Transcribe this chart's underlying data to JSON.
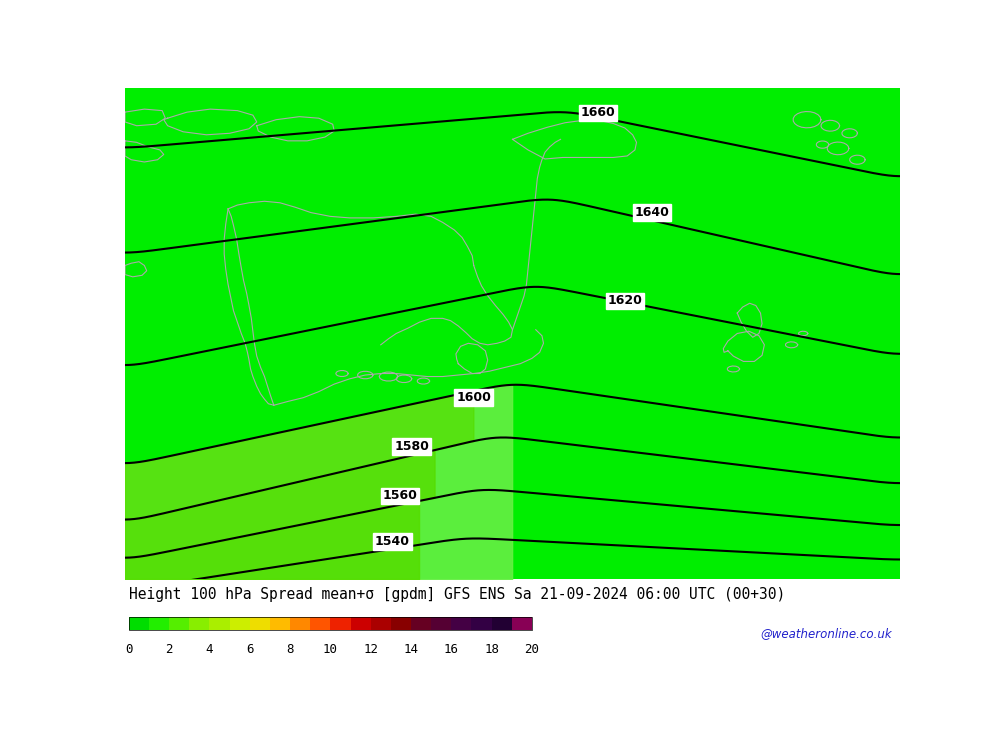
{
  "title": "Height 100 hPa Spread mean+σ [gpdm] GFS ENS Sa 21-09-2024 06:00 UTC (00+30)",
  "credit": "@weatheronline.co.uk",
  "bg_color": "#00ee00",
  "light_green": "#66ee00",
  "coast_color": "#aaaaaa",
  "contour_levels": [
    1540,
    1560,
    1580,
    1600,
    1620,
    1640,
    1660
  ],
  "colorbar_colors": [
    "#00dd00",
    "#22ee00",
    "#55ee00",
    "#88ee00",
    "#aaee00",
    "#ccee00",
    "#eedd00",
    "#ffbb00",
    "#ff8800",
    "#ff5500",
    "#ee2200",
    "#cc0000",
    "#aa0000",
    "#880000",
    "#660022",
    "#550033",
    "#440044",
    "#330044",
    "#220033",
    "#880055"
  ],
  "colorbar_ticks": [
    0,
    2,
    4,
    6,
    8,
    10,
    12,
    14,
    16,
    18,
    20
  ],
  "fig_width": 10.0,
  "fig_height": 7.33
}
